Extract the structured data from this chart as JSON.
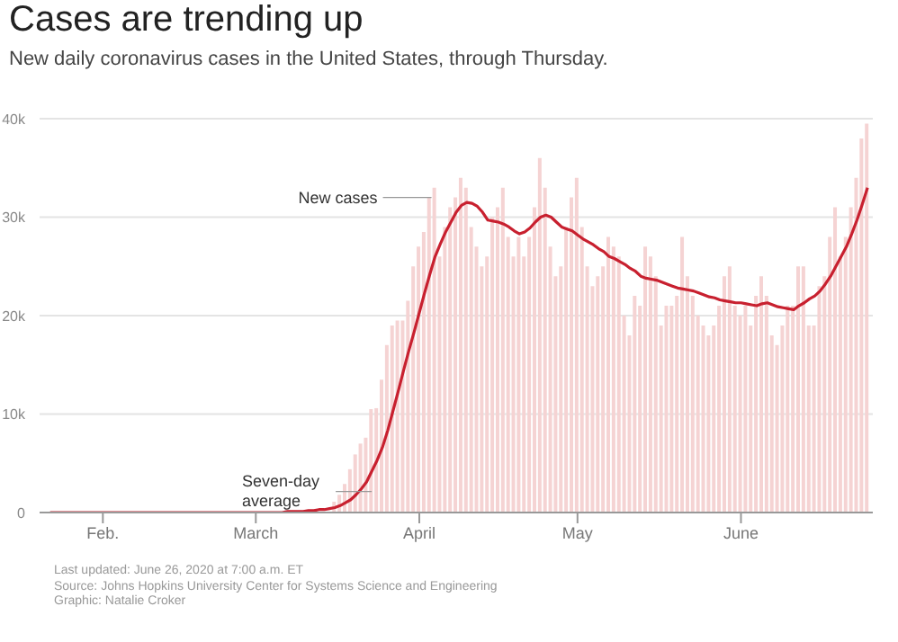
{
  "chart_data": {
    "type": "bar",
    "title": "Cases are trending up",
    "subtitle": "New daily coronavirus cases in the United States, through Thursday.",
    "annotations": [
      "Last updated: June 26, 2020 at 7:00 a.m. ET",
      "Source: Johns Hopkins University Center for Systems Science and Engineering",
      "Graphic: Natalie Croker"
    ],
    "x": [
      "2020-01-22",
      "2020-01-23",
      "2020-01-24",
      "2020-01-25",
      "2020-01-26",
      "2020-01-27",
      "2020-01-28",
      "2020-01-29",
      "2020-01-30",
      "2020-01-31",
      "2020-02-01",
      "2020-02-02",
      "2020-02-03",
      "2020-02-04",
      "2020-02-05",
      "2020-02-06",
      "2020-02-07",
      "2020-02-08",
      "2020-02-09",
      "2020-02-10",
      "2020-02-11",
      "2020-02-12",
      "2020-02-13",
      "2020-02-14",
      "2020-02-15",
      "2020-02-16",
      "2020-02-17",
      "2020-02-18",
      "2020-02-19",
      "2020-02-20",
      "2020-02-21",
      "2020-02-22",
      "2020-02-23",
      "2020-02-24",
      "2020-02-25",
      "2020-02-26",
      "2020-02-27",
      "2020-02-28",
      "2020-02-29",
      "2020-03-01",
      "2020-03-02",
      "2020-03-03",
      "2020-03-04",
      "2020-03-05",
      "2020-03-06",
      "2020-03-07",
      "2020-03-08",
      "2020-03-09",
      "2020-03-10",
      "2020-03-11",
      "2020-03-12",
      "2020-03-13",
      "2020-03-14",
      "2020-03-15",
      "2020-03-16",
      "2020-03-17",
      "2020-03-18",
      "2020-03-19",
      "2020-03-20",
      "2020-03-21",
      "2020-03-22",
      "2020-03-23",
      "2020-03-24",
      "2020-03-25",
      "2020-03-26",
      "2020-03-27",
      "2020-03-28",
      "2020-03-29",
      "2020-03-30",
      "2020-03-31",
      "2020-04-01",
      "2020-04-02",
      "2020-04-03",
      "2020-04-04",
      "2020-04-05",
      "2020-04-06",
      "2020-04-07",
      "2020-04-08",
      "2020-04-09",
      "2020-04-10",
      "2020-04-11",
      "2020-04-12",
      "2020-04-13",
      "2020-04-14",
      "2020-04-15",
      "2020-04-16",
      "2020-04-17",
      "2020-04-18",
      "2020-04-19",
      "2020-04-20",
      "2020-04-21",
      "2020-04-22",
      "2020-04-23",
      "2020-04-24",
      "2020-04-25",
      "2020-04-26",
      "2020-04-27",
      "2020-04-28",
      "2020-04-29",
      "2020-04-30",
      "2020-05-01",
      "2020-05-02",
      "2020-05-03",
      "2020-05-04",
      "2020-05-05",
      "2020-05-06",
      "2020-05-07",
      "2020-05-08",
      "2020-05-09",
      "2020-05-10",
      "2020-05-11",
      "2020-05-12",
      "2020-05-13",
      "2020-05-14",
      "2020-05-15",
      "2020-05-16",
      "2020-05-17",
      "2020-05-18",
      "2020-05-19",
      "2020-05-20",
      "2020-05-21",
      "2020-05-22",
      "2020-05-23",
      "2020-05-24",
      "2020-05-25",
      "2020-05-26",
      "2020-05-27",
      "2020-05-28",
      "2020-05-29",
      "2020-05-30",
      "2020-05-31",
      "2020-06-01",
      "2020-06-02",
      "2020-06-03",
      "2020-06-04",
      "2020-06-05",
      "2020-06-06",
      "2020-06-07",
      "2020-06-08",
      "2020-06-09",
      "2020-06-10",
      "2020-06-11",
      "2020-06-12",
      "2020-06-13",
      "2020-06-14",
      "2020-06-15",
      "2020-06-16",
      "2020-06-17",
      "2020-06-18",
      "2020-06-19",
      "2020-06-20",
      "2020-06-21",
      "2020-06-22",
      "2020-06-23",
      "2020-06-24",
      "2020-06-25"
    ],
    "series": [
      {
        "name": "New cases",
        "color": "#f5d3d3",
        "values": [
          0,
          0,
          0,
          0,
          0,
          0,
          0,
          0,
          0,
          0,
          0,
          0,
          0,
          0,
          0,
          0,
          0,
          0,
          0,
          0,
          0,
          0,
          0,
          0,
          0,
          0,
          0,
          0,
          0,
          0,
          0,
          0,
          0,
          0,
          0,
          0,
          0,
          0,
          0,
          null,
          null,
          null,
          null,
          null,
          null,
          null,
          null,
          null,
          null,
          null,
          null,
          null,
          null,
          null,
          1100,
          1800,
          2900,
          4400,
          5900,
          7000,
          7600,
          10500,
          10600,
          13500,
          17000,
          19000,
          19500,
          19500,
          21500,
          25000,
          27000,
          28500,
          32000,
          33000,
          26000,
          29000,
          31000,
          32000,
          34000,
          33000,
          29000,
          27000,
          25000,
          26000,
          30000,
          31000,
          33000,
          28000,
          26000,
          28000,
          26000,
          28000,
          31000,
          36000,
          33000,
          27000,
          24000,
          25000,
          29000,
          32000,
          34000,
          29000,
          25000,
          23000,
          24000,
          25000,
          28000,
          27000,
          26000,
          20000,
          18000,
          22000,
          21000,
          27000,
          26000,
          24000,
          19000,
          21000,
          21000,
          22000,
          28000,
          24000,
          22000,
          20000,
          19000,
          18000,
          19000,
          21000,
          24000,
          25000,
          21000,
          20000,
          21000,
          19000,
          22000,
          24000,
          22000,
          18000,
          17000,
          19000,
          21000,
          21000,
          25000,
          25000,
          19000,
          19000,
          23000,
          24000,
          28000,
          31000,
          26000,
          28000,
          31000,
          34000,
          38000,
          39500
        ]
      },
      {
        "name": "Seven-day average",
        "type": "line",
        "color": "#c8202f",
        "values": [
          0,
          0,
          0,
          0,
          0,
          0,
          0,
          0,
          0,
          0,
          0,
          0,
          0,
          0,
          0,
          0,
          0,
          0,
          0,
          0,
          0,
          0,
          0,
          0,
          0,
          0,
          0,
          0,
          0,
          0,
          0,
          0,
          0,
          0,
          0,
          0,
          0,
          0,
          0,
          0,
          0,
          0,
          0,
          0,
          0,
          100,
          100,
          100,
          100,
          200,
          200,
          300,
          300,
          400,
          500,
          700,
          1000,
          1300,
          1800,
          2400,
          3100,
          4200,
          5300,
          6600,
          8300,
          10300,
          12300,
          14400,
          16400,
          18300,
          20300,
          22300,
          24200,
          26000,
          27300,
          28500,
          29500,
          30500,
          31200,
          31500,
          31400,
          31100,
          30500,
          29700,
          29600,
          29500,
          29300,
          29000,
          28600,
          28300,
          28500,
          28900,
          29500,
          30000,
          30200,
          30000,
          29500,
          29000,
          28800,
          28600,
          28200,
          27800,
          27500,
          27200,
          26800,
          26500,
          26000,
          25800,
          25500,
          25200,
          24800,
          24500,
          24000,
          23800,
          23700,
          23600,
          23400,
          23200,
          23000,
          22800,
          22700,
          22600,
          22500,
          22300,
          22100,
          21900,
          21800,
          21600,
          21500,
          21400,
          21300,
          21300,
          21200,
          21100,
          21000,
          21200,
          21300,
          21100,
          20900,
          20800,
          20700,
          20600,
          21000,
          21300,
          21700,
          22000,
          22500,
          23200,
          24000,
          25000,
          26000,
          27000,
          28300,
          29700,
          31300,
          33000
        ]
      }
    ],
    "xlim": [
      "2020-01-20",
      "2020-06-26"
    ],
    "xticks": [
      {
        "value": "2020-02-01",
        "label": "Feb."
      },
      {
        "value": "2020-03-01",
        "label": "March"
      },
      {
        "value": "2020-04-01",
        "label": "April"
      },
      {
        "value": "2020-05-01",
        "label": "May"
      },
      {
        "value": "2020-06-01",
        "label": "June"
      }
    ],
    "ylim": [
      0,
      40000
    ],
    "yticks": [
      0,
      {
        "value": 10000,
        "label": "10k"
      },
      {
        "value": 20000,
        "label": "20k"
      },
      {
        "value": 30000,
        "label": "30k"
      },
      {
        "value": 40000,
        "label": "40k"
      }
    ],
    "grid": "y",
    "legend": false
  }
}
